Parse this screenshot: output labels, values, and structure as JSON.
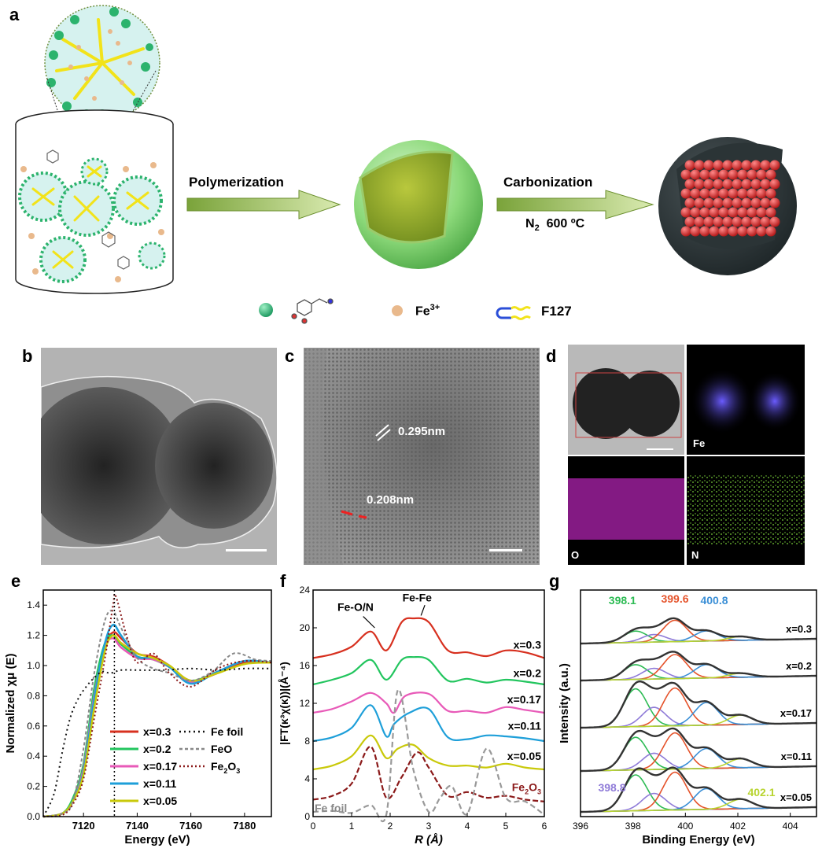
{
  "panels": {
    "a": "a",
    "b": "b",
    "c": "c",
    "d": "d",
    "e": "e",
    "f": "f",
    "g": "g"
  },
  "scheme": {
    "step1": "Polymerization",
    "step2": "Carbonization",
    "step2_cond_pre": "N",
    "step2_cond_sub": "2",
    "step2_cond_post": "600 ºC",
    "legend_fe": "Fe",
    "legend_fe_sup": "3+",
    "legend_f127": "F127"
  },
  "panel_c": {
    "d1": "0.295nm",
    "d2": "0.208nm"
  },
  "panel_d": {
    "fe": "Fe",
    "o": "O",
    "n": "N"
  },
  "colors": {
    "x03": "#d7301f",
    "x02": "#22c55e",
    "x017": "#e85ab8",
    "x011": "#1e9fd9",
    "x005": "#c9c90a",
    "fe2o3": "#8b1a1a",
    "ref": "#555555",
    "g_green": "#2dbb54",
    "g_red": "#e5532b",
    "g_blue": "#3b8fd6",
    "g_purple": "#8f7bd8",
    "g_yellow": "#b8d430"
  },
  "chart_e": {
    "type": "line",
    "xlabel": "Energy (eV)",
    "ylabel": "Normalized χμ (E)",
    "xlim": [
      7105,
      7190
    ],
    "ylim": [
      0,
      1.5
    ],
    "xticks": [
      "7120",
      "7140",
      "7160",
      "7180"
    ],
    "yticks": [
      "0.0",
      "0.2",
      "0.4",
      "0.6",
      "0.8",
      "1.0",
      "1.2",
      "1.4"
    ],
    "legend": [
      "x=0.3",
      "x=0.2",
      "x=0.17",
      "x=0.11",
      "x=0.05",
      "Fe foil",
      "FeO",
      "Fe2O3"
    ],
    "legend_right": [
      {
        "pre": "Fe foil",
        "sub": "",
        "post": ""
      },
      {
        "pre": "FeO",
        "sub": "",
        "post": ""
      },
      {
        "pre": "Fe",
        "sub": "2",
        "post": "O",
        "sub2": "3"
      }
    ],
    "series": [
      {
        "name": "x=0.3",
        "x": [
          7105,
          7112,
          7116,
          7120,
          7124,
          7128,
          7131,
          7134,
          7140,
          7146,
          7152,
          7160,
          7170,
          7180,
          7190
        ],
        "values": [
          0,
          0.02,
          0.1,
          0.3,
          0.75,
          1.12,
          1.22,
          1.18,
          1.08,
          1.06,
          1.0,
          0.9,
          0.95,
          1.02,
          1.02
        ]
      },
      {
        "name": "x=0.2",
        "x": [
          7105,
          7112,
          7116,
          7120,
          7124,
          7128,
          7131,
          7134,
          7140,
          7146,
          7152,
          7160,
          7170,
          7180,
          7190
        ],
        "values": [
          0,
          0.02,
          0.12,
          0.35,
          0.85,
          1.15,
          1.2,
          1.14,
          1.06,
          1.04,
          0.99,
          0.9,
          0.96,
          1.03,
          1.02
        ]
      },
      {
        "name": "x=0.17",
        "x": [
          7105,
          7112,
          7116,
          7120,
          7124,
          7128,
          7131,
          7134,
          7140,
          7146,
          7152,
          7160,
          7170,
          7180,
          7190
        ],
        "values": [
          0,
          0.02,
          0.1,
          0.32,
          0.8,
          1.12,
          1.18,
          1.12,
          1.05,
          1.04,
          0.99,
          0.89,
          0.96,
          1.03,
          1.02
        ]
      },
      {
        "name": "x=0.11",
        "x": [
          7105,
          7112,
          7116,
          7120,
          7124,
          7128,
          7131,
          7134,
          7140,
          7146,
          7152,
          7160,
          7170,
          7180,
          7190
        ],
        "values": [
          0,
          0.02,
          0.1,
          0.3,
          0.78,
          1.15,
          1.27,
          1.2,
          1.06,
          1.05,
          0.99,
          0.88,
          0.96,
          1.03,
          1.02
        ]
      },
      {
        "name": "x=0.05",
        "x": [
          7105,
          7112,
          7116,
          7120,
          7124,
          7128,
          7131,
          7134,
          7140,
          7146,
          7152,
          7160,
          7170,
          7180,
          7190
        ],
        "values": [
          0,
          0.02,
          0.1,
          0.28,
          0.72,
          1.1,
          1.2,
          1.15,
          1.08,
          1.05,
          1.0,
          0.9,
          0.95,
          1.01,
          1.02
        ]
      },
      {
        "name": "Fe foil",
        "x": [
          7105,
          7109,
          7112,
          7115,
          7118,
          7121,
          7124,
          7127,
          7130,
          7134,
          7140,
          7150,
          7160,
          7170,
          7180,
          7190
        ],
        "values": [
          0,
          0.15,
          0.42,
          0.65,
          0.78,
          0.86,
          0.92,
          0.96,
          0.95,
          0.97,
          0.97,
          0.97,
          0.98,
          0.97,
          0.98,
          0.98
        ]
      },
      {
        "name": "FeO",
        "x": [
          7105,
          7112,
          7116,
          7120,
          7124,
          7128,
          7131,
          7134,
          7140,
          7146,
          7152,
          7160,
          7168,
          7176,
          7184,
          7190
        ],
        "values": [
          0,
          0.02,
          0.1,
          0.45,
          0.95,
          1.3,
          1.36,
          1.25,
          1.05,
          0.98,
          0.95,
          0.9,
          0.96,
          1.08,
          1.04,
          1.03
        ]
      },
      {
        "name": "Fe2O3",
        "x": [
          7105,
          7112,
          7116,
          7120,
          7124,
          7128,
          7131,
          7132,
          7136,
          7140,
          7146,
          7152,
          7160,
          7170,
          7180,
          7190
        ],
        "values": [
          0,
          0.01,
          0.08,
          0.25,
          0.65,
          1.05,
          1.4,
          1.46,
          1.2,
          1.02,
          1.08,
          0.95,
          0.86,
          0.98,
          1.03,
          1.02
        ]
      }
    ]
  },
  "chart_f": {
    "type": "line",
    "xlabel": "R (Å)",
    "ylabel": "|FT(κ³χ(κ))|(Å⁻⁴)",
    "xlim": [
      0,
      6
    ],
    "ylim": [
      0,
      24
    ],
    "xticks": [
      "0",
      "1",
      "2",
      "3",
      "4",
      "5",
      "6"
    ],
    "yticks": [
      "0",
      "4",
      "8",
      "12",
      "16",
      "20",
      "24"
    ],
    "annotations": [
      "Fe-O/N",
      "Fe-Fe"
    ],
    "labels": [
      "x=0.3",
      "x=0.2",
      "x=0.17",
      "x=0.11",
      "x=0.05",
      "Fe foil"
    ],
    "fe2o3_label": {
      "pre": "Fe",
      "sub": "2",
      "post": "O",
      "sub2": "3"
    },
    "series": [
      {
        "name": "x=0.3",
        "x": [
          0,
          0.5,
          1.0,
          1.5,
          1.9,
          2.3,
          2.6,
          3.0,
          3.5,
          4.0,
          4.5,
          5.0,
          5.5,
          6.0
        ],
        "values": [
          16.8,
          17.2,
          18.0,
          19.6,
          17.6,
          20.6,
          21.0,
          20.6,
          17.6,
          17.4,
          17.0,
          17.6,
          17.4,
          16.8
        ]
      },
      {
        "name": "x=0.2",
        "x": [
          0,
          0.5,
          1.0,
          1.5,
          1.9,
          2.3,
          2.6,
          3.0,
          3.5,
          4.0,
          4.5,
          5.0,
          5.5,
          6.0
        ],
        "values": [
          14.0,
          14.5,
          15.2,
          16.6,
          14.5,
          16.6,
          16.9,
          16.6,
          14.4,
          14.6,
          14.2,
          14.5,
          14.3,
          14.0
        ]
      },
      {
        "name": "x=0.17",
        "x": [
          0,
          0.5,
          1.0,
          1.5,
          1.9,
          2.1,
          2.4,
          3.0,
          3.5,
          4.0,
          4.5,
          5.0,
          5.5,
          6.0
        ],
        "values": [
          11.0,
          11.4,
          12.2,
          13.1,
          12.0,
          11.0,
          12.8,
          13.0,
          11.2,
          11.2,
          11.0,
          11.6,
          11.3,
          11.0
        ]
      },
      {
        "name": "x=0.11",
        "x": [
          0,
          0.5,
          1.0,
          1.5,
          1.9,
          2.1,
          2.5,
          3.0,
          3.5,
          4.0,
          4.5,
          5.0,
          5.5,
          6.0
        ],
        "values": [
          8.0,
          8.4,
          9.4,
          11.8,
          8.5,
          9.8,
          11.0,
          11.4,
          8.4,
          8.2,
          8.6,
          8.5,
          8.3,
          8.0
        ]
      },
      {
        "name": "x=0.05",
        "x": [
          0,
          0.5,
          1.0,
          1.5,
          1.9,
          2.2,
          2.6,
          3.0,
          3.5,
          4.0,
          4.5,
          5.0,
          5.5,
          6.0
        ],
        "values": [
          5.0,
          5.4,
          6.4,
          8.6,
          6.2,
          7.2,
          7.6,
          6.2,
          5.4,
          5.4,
          5.2,
          5.6,
          5.2,
          5.0
        ]
      },
      {
        "name": "Fe2O3",
        "x": [
          0,
          0.5,
          1.0,
          1.5,
          1.9,
          2.3,
          2.7,
          3.0,
          3.5,
          4.0,
          4.5,
          5.0,
          5.5,
          6.0
        ],
        "values": [
          1.8,
          2.2,
          3.5,
          7.4,
          2.0,
          4.2,
          6.8,
          5.2,
          2.2,
          2.6,
          2.0,
          2.2,
          1.8,
          1.6
        ]
      },
      {
        "name": "Fe foil",
        "x": [
          0,
          0.5,
          1.0,
          1.5,
          1.9,
          2.2,
          2.6,
          3.0,
          3.3,
          3.6,
          4.0,
          4.5,
          5.0,
          5.5,
          6.0
        ],
        "values": [
          0.5,
          0.6,
          0.4,
          1.2,
          0.2,
          13.4,
          5.0,
          0.5,
          2.0,
          3.2,
          0.3,
          7.2,
          2.0,
          1.6,
          0.2
        ]
      }
    ]
  },
  "chart_g": {
    "type": "line",
    "xlabel": "Binding Energy (eV)",
    "ylabel": "Intensity (a.u.)",
    "xlim": [
      396,
      405
    ],
    "xticks": [
      "396",
      "398",
      "400",
      "402",
      "404"
    ],
    "peak_labels": [
      "398.1",
      "399.6",
      "400.8",
      "398.8",
      "402.1"
    ],
    "row_labels": [
      "x=0.3",
      "x=0.2",
      "x=0.17",
      "x=0.11",
      "x=0.05"
    ],
    "peaks_eV": [
      398.1,
      398.8,
      399.6,
      400.8,
      402.1
    ],
    "rows": [
      {
        "name": "x=0.3",
        "amplitudes": [
          0.45,
          0.3,
          0.85,
          0.4,
          0.15
        ]
      },
      {
        "name": "x=0.2",
        "amplitudes": [
          0.55,
          0.4,
          0.9,
          0.5,
          0.15
        ]
      },
      {
        "name": "x=0.17",
        "amplitudes": [
          1.0,
          0.5,
          1.0,
          0.6,
          0.25
        ]
      },
      {
        "name": "x=0.11",
        "amplitudes": [
          0.9,
          0.45,
          1.0,
          0.55,
          0.25
        ]
      },
      {
        "name": "x=0.05",
        "amplitudes": [
          0.95,
          0.45,
          1.0,
          0.55,
          0.25
        ]
      }
    ]
  }
}
